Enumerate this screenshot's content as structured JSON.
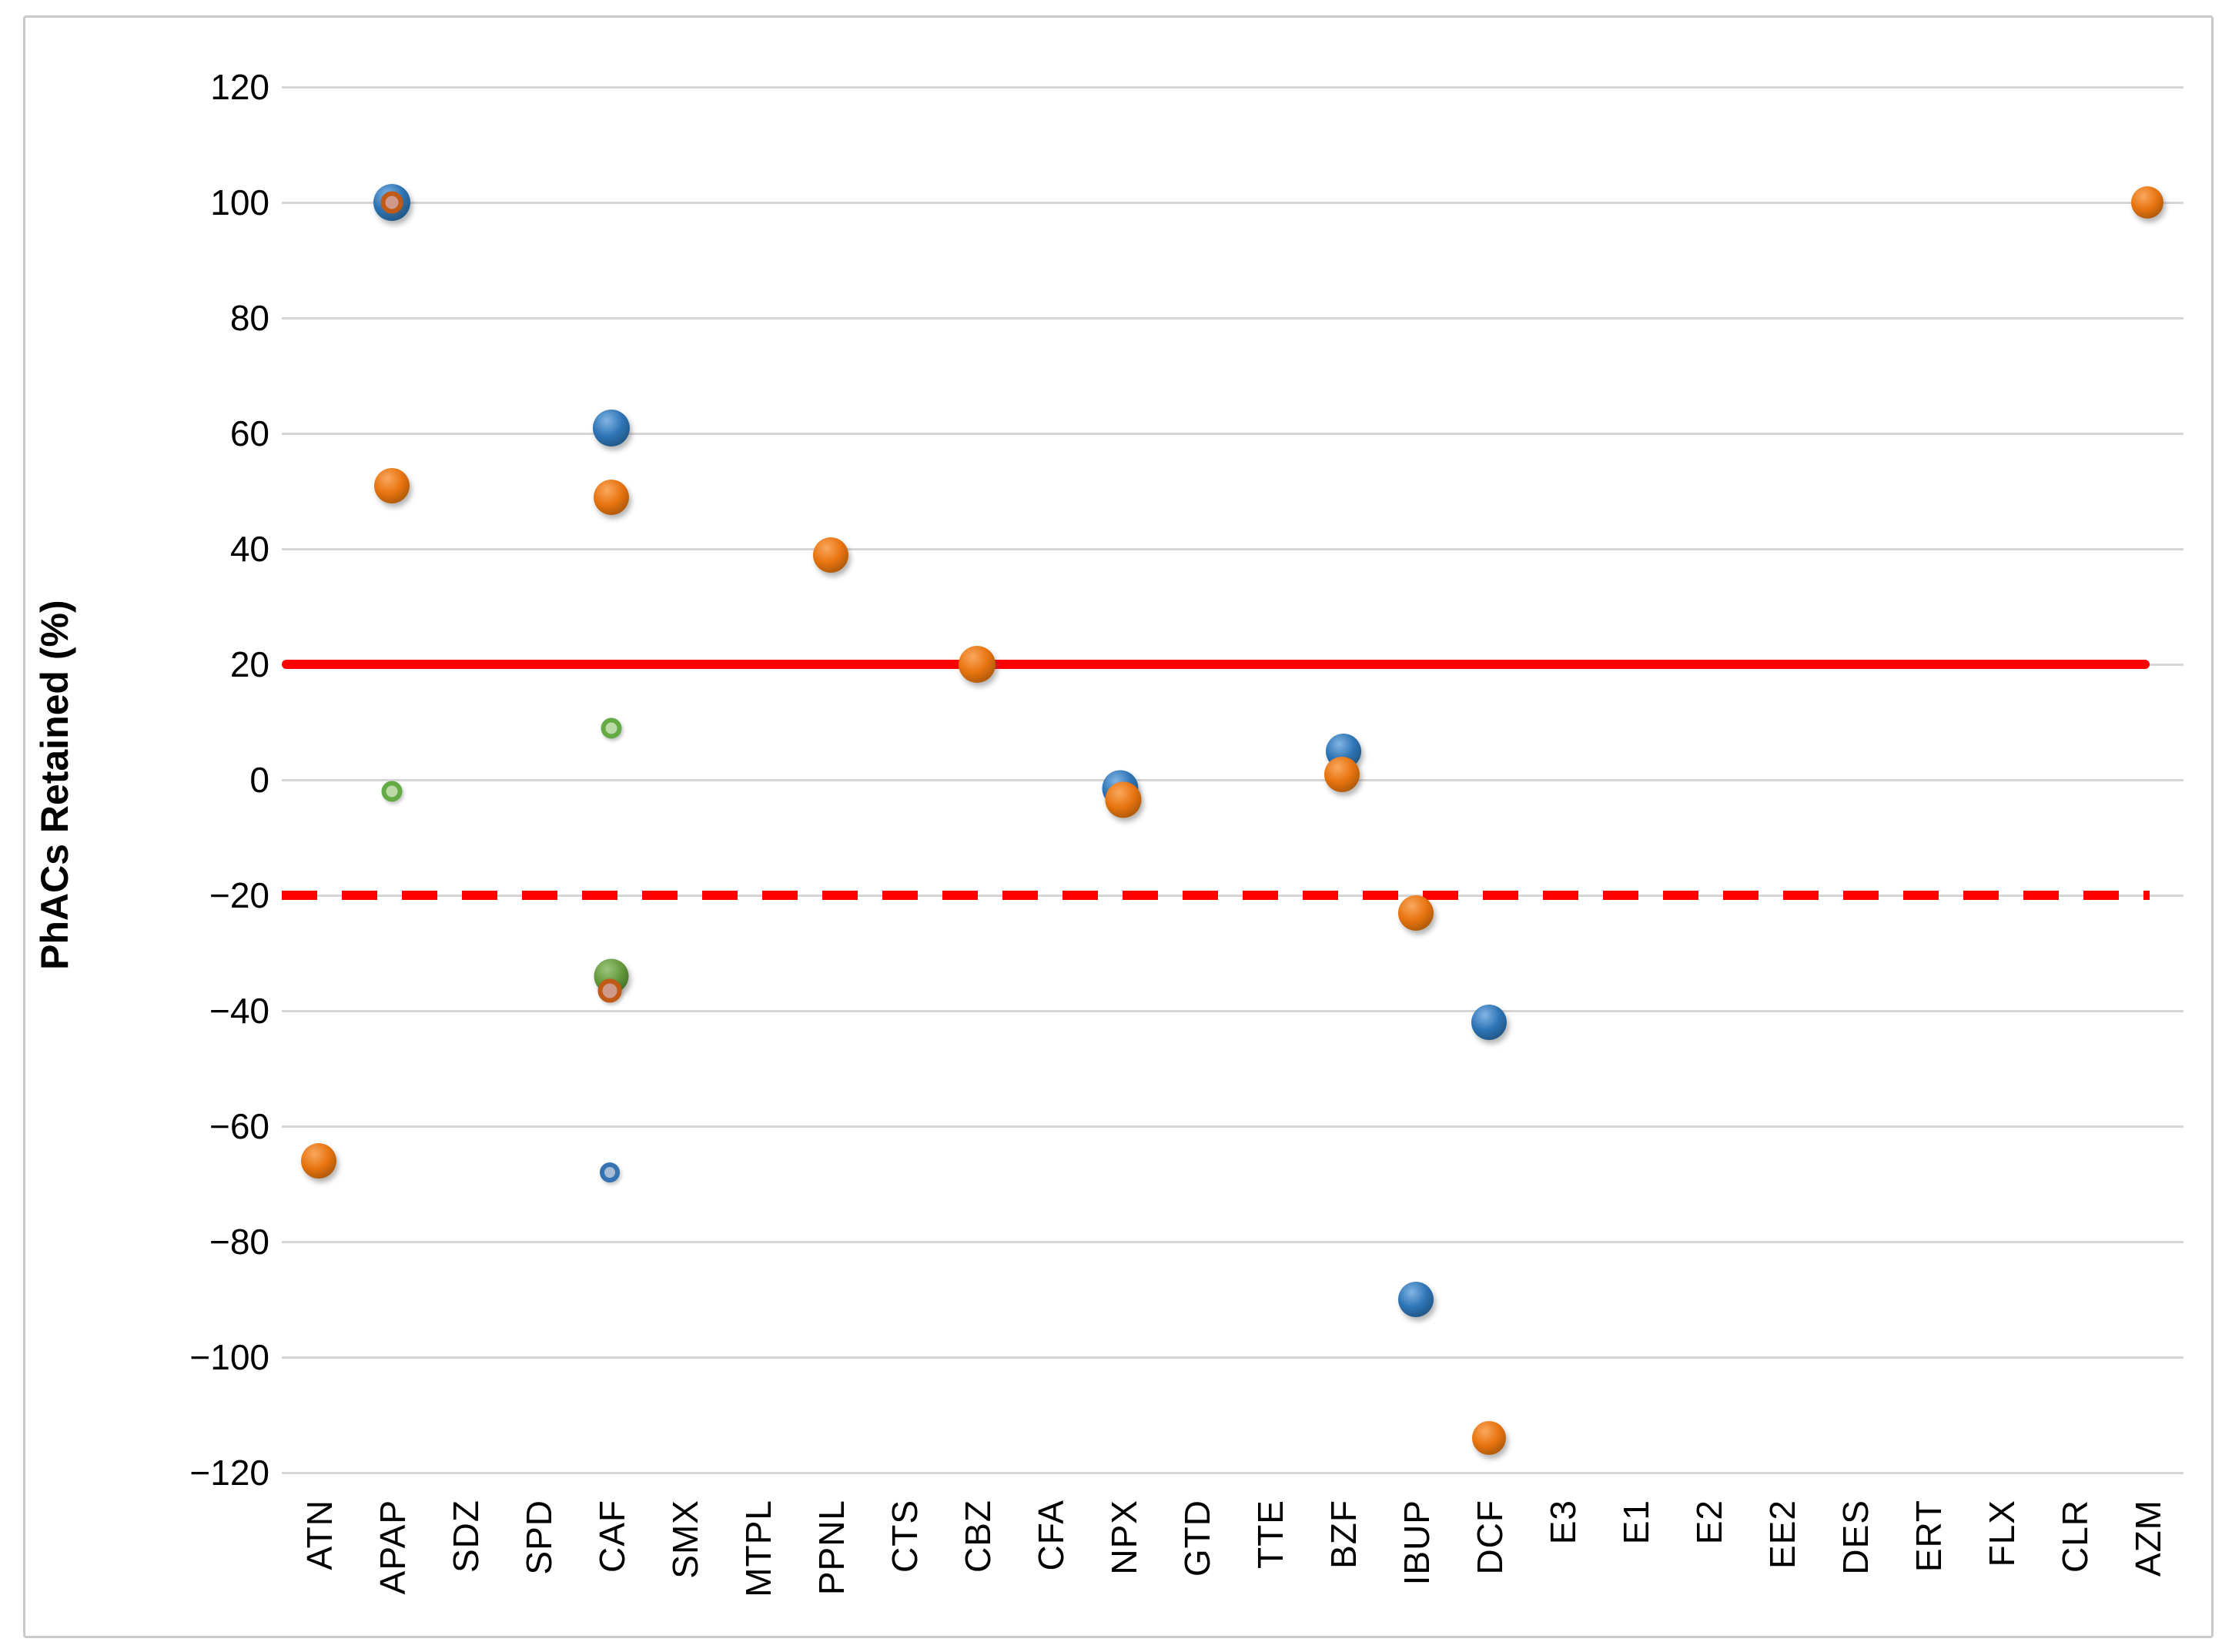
{
  "chart_data": {
    "type": "scatter",
    "title": "",
    "xlabel": "",
    "ylabel": "PhACs Retained (%)",
    "ylim": [
      -130,
      130
    ],
    "yticks": [
      120,
      100,
      80,
      60,
      40,
      20,
      0,
      -20,
      -40,
      -60,
      -80,
      -100,
      -120
    ],
    "grid": "horizontal",
    "legend": "none",
    "categories": [
      "ATN",
      "APAP",
      "SDZ",
      "SPD",
      "CAF",
      "SMX",
      "MTPL",
      "PPNL",
      "CTS",
      "CBZ",
      "CFA",
      "NPX",
      "GTD",
      "TTE",
      "BZF",
      "IBUP",
      "DCF",
      "E3",
      "E1",
      "E2",
      "EE2",
      "DES",
      "ERT",
      "FLX",
      "CLR",
      "AZM"
    ],
    "series": [
      {
        "name": "blue-series",
        "color": "#2e75b6",
        "points": [
          {
            "category": "APAP",
            "value": 100
          },
          {
            "category": "CAF",
            "value": 61
          },
          {
            "category": "CAF",
            "value": -68
          },
          {
            "category": "NPX",
            "value": -2
          },
          {
            "category": "BZF",
            "value": 5
          },
          {
            "category": "IBUP",
            "value": -90
          },
          {
            "category": "DCF",
            "value": -42
          }
        ]
      },
      {
        "name": "orange-series",
        "color": "#e8740f",
        "points": [
          {
            "category": "ATN",
            "value": -66
          },
          {
            "category": "APAP",
            "value": 100
          },
          {
            "category": "APAP",
            "value": 51
          },
          {
            "category": "CAF",
            "value": 49
          },
          {
            "category": "CAF",
            "value": -36
          },
          {
            "category": "PPNL",
            "value": 39
          },
          {
            "category": "CBZ",
            "value": 20
          },
          {
            "category": "NPX",
            "value": -3
          },
          {
            "category": "BZF",
            "value": 1
          },
          {
            "category": "IBUP",
            "value": -23
          },
          {
            "category": "DCF",
            "value": -114
          },
          {
            "category": "AZM",
            "value": 100
          }
        ]
      },
      {
        "name": "green-series",
        "color": "#61973a",
        "points": [
          {
            "category": "APAP",
            "value": -2
          },
          {
            "category": "CAF",
            "value": 9
          },
          {
            "category": "CAF",
            "value": -34
          }
        ]
      }
    ],
    "reference_lines": [
      {
        "value": 20,
        "style": "solid",
        "color": "#fe0000"
      },
      {
        "value": -20,
        "style": "dashed",
        "color": "#fe0000"
      }
    ],
    "render_points": [
      {
        "cat": "ATN",
        "v": -66,
        "color": "orange",
        "style": "solid",
        "d": 46,
        "dx": 0
      },
      {
        "cat": "APAP",
        "v": 100,
        "color": "blue",
        "style": "solid",
        "d": 48,
        "dx": 0
      },
      {
        "cat": "APAP",
        "v": 100,
        "color": "orange",
        "style": "ring",
        "d": 29,
        "dx": 0
      },
      {
        "cat": "APAP",
        "v": 51,
        "color": "orange",
        "style": "solid",
        "d": 46,
        "dx": 0
      },
      {
        "cat": "APAP",
        "v": -2,
        "color": "green",
        "style": "ring",
        "d": 27,
        "dx": 0
      },
      {
        "cat": "CAF",
        "v": 61,
        "color": "blue",
        "style": "solid",
        "d": 48,
        "dx": 0
      },
      {
        "cat": "CAF",
        "v": 49,
        "color": "orange",
        "style": "solid",
        "d": 46,
        "dx": 0
      },
      {
        "cat": "CAF",
        "v": 9,
        "color": "green",
        "style": "ring",
        "d": 27,
        "dx": 0
      },
      {
        "cat": "CAF",
        "v": -34,
        "color": "green",
        "style": "solid",
        "d": 45,
        "dx": 0
      },
      {
        "cat": "CAF",
        "v": -36.5,
        "color": "orange",
        "style": "ring",
        "d": 31,
        "dx": -2
      },
      {
        "cat": "CAF",
        "v": -68,
        "color": "blue",
        "style": "ring",
        "d": 26,
        "dx": -2
      },
      {
        "cat": "PPNL",
        "v": 39,
        "color": "orange",
        "style": "solid",
        "d": 46,
        "dx": 0
      },
      {
        "cat": "CBZ",
        "v": 20,
        "color": "orange",
        "style": "solid",
        "d": 48,
        "dx": 0
      },
      {
        "cat": "NPX",
        "v": -1.5,
        "color": "blue",
        "style": "solid",
        "d": 47,
        "dx": -4
      },
      {
        "cat": "NPX",
        "v": -3.5,
        "color": "orange",
        "style": "solid",
        "d": 47,
        "dx": 0
      },
      {
        "cat": "BZF",
        "v": 5,
        "color": "blue",
        "style": "solid",
        "d": 46,
        "dx": 1
      },
      {
        "cat": "BZF",
        "v": 1,
        "color": "orange",
        "style": "solid",
        "d": 46,
        "dx": -1
      },
      {
        "cat": "IBUP",
        "v": -23,
        "color": "orange",
        "style": "solid",
        "d": 46,
        "dx": 0
      },
      {
        "cat": "IBUP",
        "v": -90,
        "color": "blue",
        "style": "solid",
        "d": 46,
        "dx": 0
      },
      {
        "cat": "DCF",
        "v": -42,
        "color": "blue",
        "style": "solid",
        "d": 46,
        "dx": 0
      },
      {
        "cat": "DCF",
        "v": -114,
        "color": "orange",
        "style": "solid",
        "d": 44,
        "dx": 0
      },
      {
        "cat": "AZM",
        "v": 100,
        "color": "orange",
        "style": "solid",
        "d": 42,
        "dx": 0
      }
    ],
    "colors": {
      "gridline": "#d6d6d6",
      "reference": "#fe0000",
      "blue": "#2e75b6",
      "orange": "#e8740f",
      "green": "#61973a",
      "text": "#000000"
    }
  }
}
